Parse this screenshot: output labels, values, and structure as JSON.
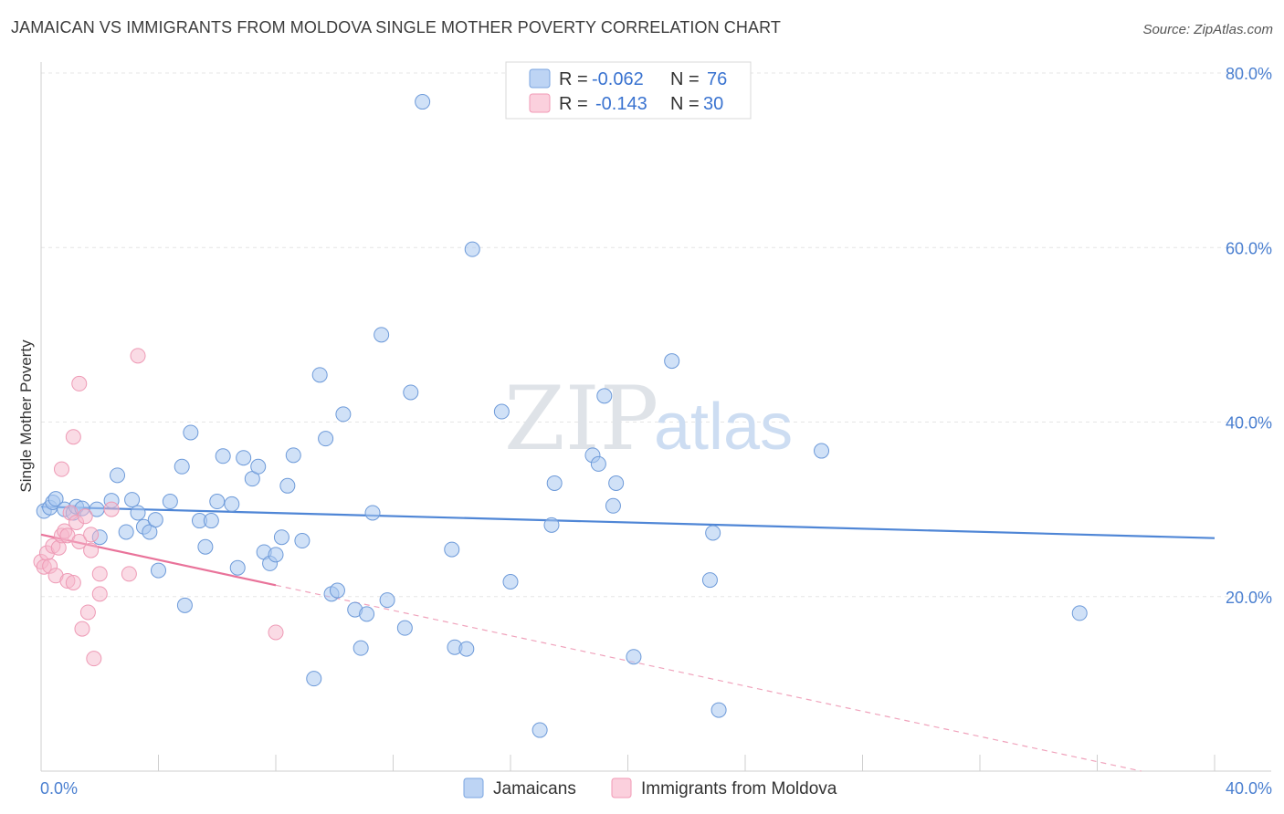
{
  "header": {
    "title": "JAMAICAN VS IMMIGRANTS FROM MOLDOVA SINGLE MOTHER POVERTY CORRELATION CHART",
    "source": "Source: ZipAtlas.com"
  },
  "watermark": {
    "zip": "ZIP",
    "atlas": "atlas"
  },
  "legend_box": {
    "rows": [
      {
        "r_label": "R = ",
        "r_value": "-0.062",
        "n_label": "N = ",
        "n_value": "76",
        "color": "#a9c8f0"
      },
      {
        "r_label": "R = ",
        "r_value": "-0.143",
        "n_label": "N = ",
        "n_value": "30",
        "color": "#f6b8cb"
      }
    ]
  },
  "bottom_legend": [
    {
      "label": "Jamaicans",
      "color": "#a9c8f0"
    },
    {
      "label": "Immigrants from Moldova",
      "color": "#f6b8cb"
    }
  ],
  "chart_data": {
    "type": "scatter",
    "title": "JAMAICAN VS IMMIGRANTS FROM MOLDOVA SINGLE MOTHER POVERTY CORRELATION CHART",
    "xlabel": "",
    "ylabel": "Single Mother Poverty",
    "xlim": [
      0,
      40
    ],
    "ylim": [
      0,
      80
    ],
    "x_tick_labels": [
      "0.0%",
      "40.0%"
    ],
    "y_tick_labels": [
      "20.0%",
      "40.0%",
      "60.0%",
      "80.0%"
    ],
    "y_ticks": [
      20,
      40,
      60,
      80
    ],
    "grid": true,
    "legend_position": "top-center",
    "colors": {
      "jamaicans": "#4f86d6",
      "moldova": "#e9739a"
    },
    "series": [
      {
        "name": "Jamaicans",
        "r": -0.062,
        "n": 76,
        "trend": {
          "x": [
            0,
            40
          ],
          "y": [
            30.3,
            26.7
          ]
        },
        "points": [
          [
            0.1,
            29.8
          ],
          [
            0.3,
            30.2
          ],
          [
            0.4,
            30.8
          ],
          [
            0.5,
            31.2
          ],
          [
            0.8,
            30.0
          ],
          [
            1.1,
            29.6
          ],
          [
            1.2,
            30.3
          ],
          [
            1.9,
            30.0
          ],
          [
            1.4,
            30.1
          ],
          [
            2.0,
            26.8
          ],
          [
            2.4,
            31.0
          ],
          [
            2.6,
            33.9
          ],
          [
            2.9,
            27.4
          ],
          [
            3.1,
            31.1
          ],
          [
            3.3,
            29.6
          ],
          [
            3.5,
            28.0
          ],
          [
            3.7,
            27.4
          ],
          [
            3.9,
            28.8
          ],
          [
            4.0,
            23.0
          ],
          [
            4.4,
            30.9
          ],
          [
            4.8,
            34.9
          ],
          [
            4.9,
            19.0
          ],
          [
            5.1,
            38.8
          ],
          [
            5.4,
            28.7
          ],
          [
            5.6,
            25.7
          ],
          [
            5.8,
            28.7
          ],
          [
            6.0,
            30.9
          ],
          [
            6.2,
            36.1
          ],
          [
            6.5,
            30.6
          ],
          [
            6.7,
            23.3
          ],
          [
            6.9,
            35.9
          ],
          [
            7.2,
            33.5
          ],
          [
            7.4,
            34.9
          ],
          [
            7.6,
            25.1
          ],
          [
            7.8,
            23.8
          ],
          [
            8.0,
            24.8
          ],
          [
            8.2,
            26.8
          ],
          [
            8.4,
            32.7
          ],
          [
            8.6,
            36.2
          ],
          [
            8.9,
            26.4
          ],
          [
            9.3,
            10.6
          ],
          [
            9.5,
            45.4
          ],
          [
            9.7,
            38.1
          ],
          [
            9.9,
            20.3
          ],
          [
            10.1,
            20.7
          ],
          [
            10.3,
            40.9
          ],
          [
            10.7,
            18.5
          ],
          [
            10.9,
            14.1
          ],
          [
            11.1,
            18.0
          ],
          [
            11.3,
            29.6
          ],
          [
            11.6,
            50.0
          ],
          [
            11.8,
            19.6
          ],
          [
            12.4,
            16.4
          ],
          [
            12.6,
            43.4
          ],
          [
            13.0,
            76.7
          ],
          [
            14.0,
            25.4
          ],
          [
            14.1,
            14.2
          ],
          [
            14.5,
            14.0
          ],
          [
            14.7,
            59.8
          ],
          [
            15.7,
            41.2
          ],
          [
            16.0,
            21.7
          ],
          [
            17.0,
            4.7
          ],
          [
            17.4,
            28.2
          ],
          [
            17.5,
            33.0
          ],
          [
            18.8,
            36.2
          ],
          [
            19.0,
            35.2
          ],
          [
            19.2,
            43.0
          ],
          [
            19.5,
            30.4
          ],
          [
            19.6,
            33.0
          ],
          [
            20.2,
            13.1
          ],
          [
            21.5,
            47.0
          ],
          [
            22.8,
            21.9
          ],
          [
            22.9,
            27.3
          ],
          [
            23.1,
            7.0
          ],
          [
            26.6,
            36.7
          ],
          [
            35.4,
            18.1
          ]
        ]
      },
      {
        "name": "Immigrants from Moldova",
        "r": -0.143,
        "n": 30,
        "trend": {
          "x": [
            0,
            8.0
          ],
          "y": [
            27.1,
            21.3
          ]
        },
        "trend_dashed": {
          "x": [
            8.0,
            37.5
          ],
          "y": [
            21.3,
            0
          ]
        },
        "points": [
          [
            0.0,
            24.0
          ],
          [
            0.1,
            23.4
          ],
          [
            0.2,
            25.0
          ],
          [
            0.3,
            23.5
          ],
          [
            0.4,
            25.8
          ],
          [
            0.5,
            22.4
          ],
          [
            0.6,
            25.6
          ],
          [
            0.7,
            27.0
          ],
          [
            0.7,
            34.6
          ],
          [
            0.8,
            27.5
          ],
          [
            0.9,
            27.0
          ],
          [
            0.9,
            21.8
          ],
          [
            1.0,
            29.6
          ],
          [
            1.1,
            38.3
          ],
          [
            1.1,
            21.6
          ],
          [
            1.2,
            28.5
          ],
          [
            1.3,
            26.3
          ],
          [
            1.3,
            44.4
          ],
          [
            1.4,
            16.3
          ],
          [
            1.5,
            29.2
          ],
          [
            1.6,
            18.2
          ],
          [
            1.7,
            25.3
          ],
          [
            1.7,
            27.1
          ],
          [
            1.8,
            12.9
          ],
          [
            2.0,
            20.3
          ],
          [
            2.0,
            22.6
          ],
          [
            2.4,
            30.0
          ],
          [
            3.0,
            22.6
          ],
          [
            3.3,
            47.6
          ],
          [
            8.0,
            15.9
          ]
        ]
      }
    ]
  }
}
